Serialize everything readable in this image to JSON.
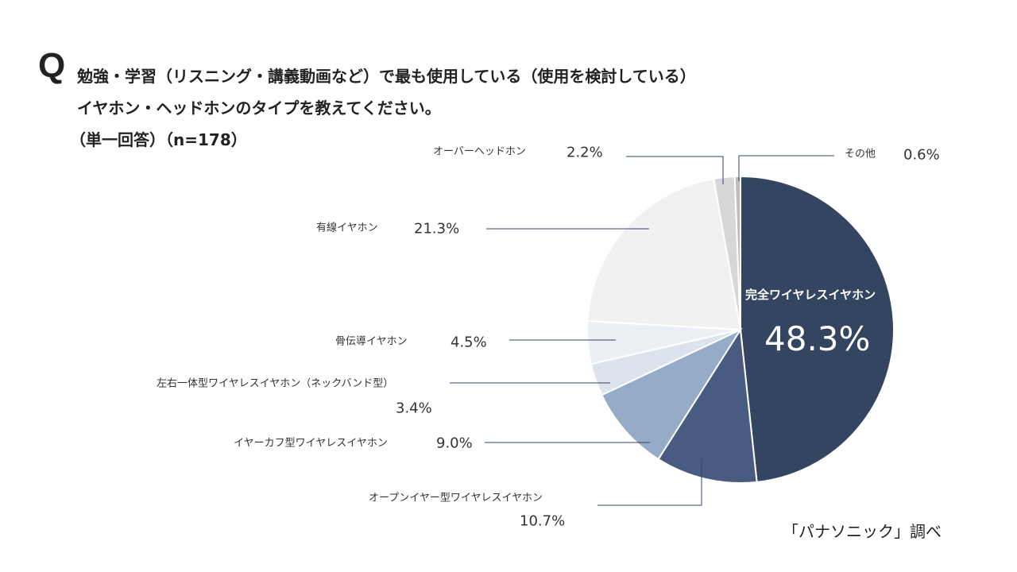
{
  "title": {
    "q": "Q",
    "line1": "勉強・学習（リスニング・講義動画など）で最も使用している（使用を検討している）",
    "line2": "イヤホン・ヘッドホンのタイプを教えてください。",
    "line3": "（単一回答）（n=178）"
  },
  "source": "「パナソニック」調べ",
  "chart_data": {
    "type": "pie",
    "start": "top, clockwise",
    "slices": [
      {
        "label": "完全ワイヤレスイヤホン",
        "value": 48.3,
        "display": "48.3%",
        "color": "#334561"
      },
      {
        "label": "オープンイヤー型ワイヤレスイヤホン",
        "value": 10.7,
        "display": "10.7%",
        "color": "#4a5b82"
      },
      {
        "label": "イヤーカフ型ワイヤレスイヤホン",
        "value": 9.0,
        "display": "9.0%",
        "color": "#96abc8"
      },
      {
        "label": "左右一体型ワイヤレスイヤホン（ネックバンド型）",
        "value": 3.4,
        "display": "3.4%",
        "color": "#dde3ec"
      },
      {
        "label": "骨伝導イヤホン",
        "value": 4.5,
        "display": "4.5%",
        "color": "#eceff4"
      },
      {
        "label": "有線イヤホン",
        "value": 21.3,
        "display": "21.3%",
        "color": "#f1f1f1"
      },
      {
        "label": "オーバーヘッドホン",
        "value": 2.2,
        "display": "2.2%",
        "color": "#d7d7d7"
      },
      {
        "label": "その他",
        "value": 0.6,
        "display": "0.6%",
        "color": "#bcbcbc"
      }
    ]
  }
}
